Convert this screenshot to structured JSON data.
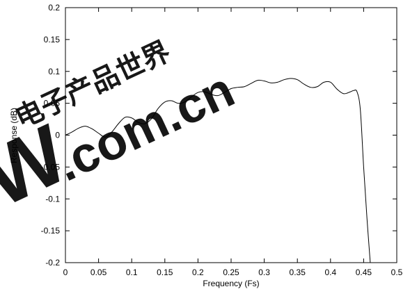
{
  "colors": {
    "curve": "#000000",
    "axis": "#000000",
    "watermark": "#e3343a",
    "background": "#ffffff"
  },
  "chart_data": {
    "type": "line",
    "title": "",
    "xlabel": "Frequency (Fs)",
    "ylabel": "Response (dB)",
    "xlim": [
      0,
      0.5
    ],
    "ylim": [
      -0.2,
      0.2
    ],
    "xticks": [
      0,
      0.05,
      0.1,
      0.15,
      0.2,
      0.25,
      0.3,
      0.35,
      0.4,
      0.45,
      0.5
    ],
    "xtick_labels": [
      "0",
      "0.05",
      "0.1",
      "0.15",
      "0.2",
      "0.25",
      "0.3",
      "0.35",
      "0.4",
      "0.45",
      "0.5"
    ],
    "yticks": [
      -0.2,
      -0.15,
      -0.1,
      -0.05,
      0,
      0.05,
      0.1,
      0.15,
      0.2
    ],
    "ytick_labels": [
      "-0.2",
      "-0.15",
      "-0.1",
      "-0.05",
      "0",
      "0.05",
      "0.1",
      "0.15",
      "0.2"
    ],
    "grid": false,
    "legend": "none",
    "series": [
      {
        "x": [
          0,
          0.01,
          0.02,
          0.03,
          0.04,
          0.05,
          0.06,
          0.07,
          0.08,
          0.09,
          0.1,
          0.11,
          0.12,
          0.13,
          0.14,
          0.15,
          0.16,
          0.17,
          0.18,
          0.19,
          0.2,
          0.21,
          0.22,
          0.23,
          0.24,
          0.25,
          0.26,
          0.27,
          0.28,
          0.29,
          0.3,
          0.31,
          0.32,
          0.33,
          0.34,
          0.35,
          0.36,
          0.37,
          0.38,
          0.39,
          0.4,
          0.41,
          0.42,
          0.43,
          0.435,
          0.44,
          0.445,
          0.45,
          0.455,
          0.46
        ],
        "y": [
          0.0,
          0.005,
          0.011,
          0.014,
          0.01,
          0.003,
          -0.003,
          0.005,
          0.018,
          0.028,
          0.027,
          0.02,
          0.018,
          0.026,
          0.042,
          0.052,
          0.054,
          0.05,
          0.052,
          0.06,
          0.067,
          0.068,
          0.064,
          0.062,
          0.067,
          0.073,
          0.075,
          0.076,
          0.081,
          0.086,
          0.085,
          0.082,
          0.083,
          0.087,
          0.089,
          0.087,
          0.08,
          0.075,
          0.076,
          0.083,
          0.083,
          0.072,
          0.065,
          0.068,
          0.07,
          0.068,
          0.04,
          -0.05,
          -0.13,
          -0.2
        ]
      }
    ]
  },
  "watermark": {
    "chinese": "电子产品世界",
    "latin": ".com.cn",
    "letter": "W"
  }
}
